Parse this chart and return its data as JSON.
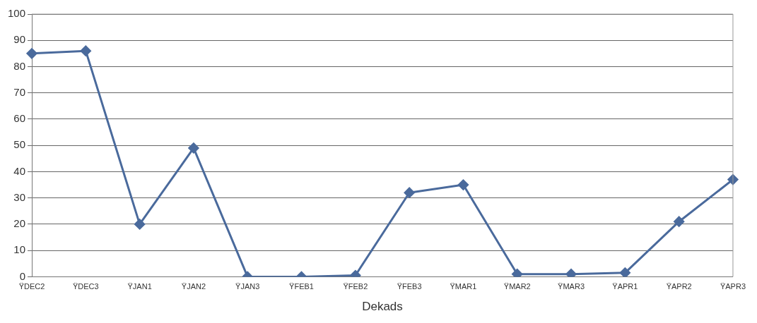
{
  "chart_data": {
    "type": "line",
    "xlabel": "Dekads",
    "categories": [
      "ŸDEC2",
      "ŸDEC3",
      "ŸJAN1",
      "ŸJAN2",
      "ŸJAN3",
      "ŸFEB1",
      "ŸFEB2",
      "ŸFEB3",
      "ŸMAR1",
      "ŸMAR2",
      "ŸMAR3",
      "ŸAPR1",
      "ŸAPR2",
      "ŸAPR3"
    ],
    "series": [
      {
        "color": "#4a6a9c",
        "values": [
          85,
          86,
          20,
          49,
          0,
          0,
          0.5,
          32,
          35,
          1,
          1,
          1.5,
          21,
          37
        ]
      }
    ],
    "ylim": [
      0,
      100
    ],
    "yticks": [
      0,
      10,
      20,
      30,
      40,
      50,
      60,
      70,
      80,
      90,
      100
    ],
    "grid": "y",
    "legend": false,
    "marker": "diamond",
    "line_style": "solid"
  }
}
